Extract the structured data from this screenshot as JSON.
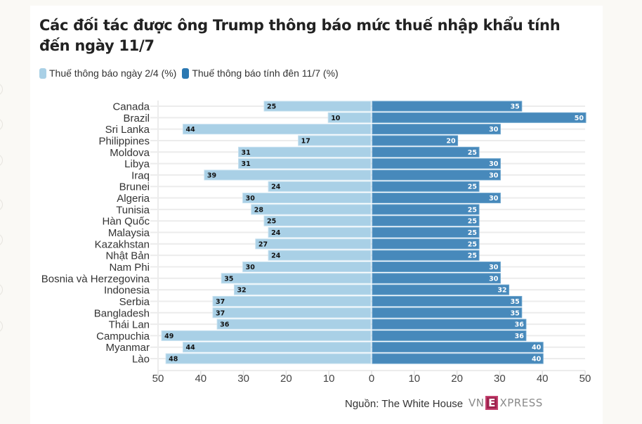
{
  "chart_data": {
    "type": "bar",
    "orientation": "horizontal-diverging",
    "title": "Các đối tác được ông Trump thông báo mức thuế nhập khẩu tính đến ngày 11/7",
    "categories": [
      "Canada",
      "Brazil",
      "Sri Lanka",
      "Philippines",
      "Moldova",
      "Libya",
      "Iraq",
      "Brunei",
      "Algeria",
      "Tunisia",
      "Hàn Quốc",
      "Malaysia",
      "Kazakhstan",
      "Nhật Bản",
      "Nam Phi",
      "Bosnia và Herzegovina",
      "Indonesia",
      "Serbia",
      "Bangladesh",
      "Thái Lan",
      "Campuchia",
      "Myanmar",
      "Lào"
    ],
    "series": [
      {
        "name": "Thuế thông báo ngày 2/4 (%)",
        "side": "left",
        "color": "#a9d0e6",
        "values": [
          25,
          10,
          44,
          17,
          31,
          31,
          39,
          24,
          30,
          28,
          25,
          24,
          27,
          24,
          30,
          35,
          32,
          37,
          37,
          36,
          49,
          44,
          48
        ]
      },
      {
        "name": "Thuế thông báo tính đến 11/7 (%)",
        "side": "right",
        "color": "#4789bb",
        "values": [
          35,
          50,
          30,
          20,
          25,
          30,
          30,
          25,
          30,
          25,
          25,
          25,
          25,
          25,
          30,
          30,
          32,
          35,
          35,
          36,
          36,
          40,
          40
        ]
      }
    ],
    "x_ticks_left": [
      "50",
      "40",
      "30",
      "20",
      "10",
      "0"
    ],
    "x_ticks_right": [
      "10",
      "20",
      "30",
      "40",
      "50"
    ],
    "xlim": [
      0,
      50
    ],
    "grid": true,
    "legend_position": "top-left",
    "source": "Nguồn: The White House"
  },
  "legend": {
    "items": [
      {
        "label": "Thuế thông báo ngày 2/4 (%)",
        "color": "#a9d0e6"
      },
      {
        "label": "Thuế thông báo tính đên 11/7 (%)",
        "color": "#2a78b2"
      }
    ]
  },
  "footer": {
    "source": "Nguồn: The White House",
    "logo_vn": "VN",
    "logo_e": "E",
    "logo_xpress": "XPRESS"
  }
}
